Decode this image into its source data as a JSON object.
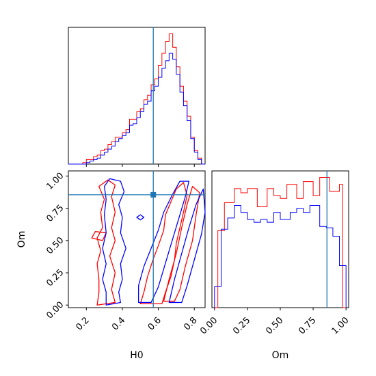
{
  "chart_data": [
    {
      "panel": "H0 marginal",
      "type": "histogram",
      "xlim": [
        0.1,
        0.86
      ],
      "tick_values": [
        0.2,
        0.4,
        0.6,
        0.8
      ],
      "truth_line_x": 0.572,
      "series": [
        {
          "color": "#ff0000",
          "bin_edges": [
            0.1,
            0.12,
            0.14,
            0.16,
            0.18,
            0.2,
            0.22,
            0.24,
            0.26,
            0.28,
            0.3,
            0.32,
            0.34,
            0.36,
            0.38,
            0.4,
            0.42,
            0.44,
            0.46,
            0.48,
            0.5,
            0.52,
            0.54,
            0.56,
            0.58,
            0.6,
            0.62,
            0.64,
            0.66,
            0.68,
            0.7,
            0.72,
            0.74,
            0.76,
            0.78,
            0.8,
            0.82,
            0.84,
            0.86
          ],
          "counts": [
            0,
            0,
            0,
            0,
            0.5,
            1.5,
            1.5,
            2.5,
            3,
            4.5,
            5,
            6.5,
            7.5,
            9,
            9,
            10.5,
            11.5,
            15,
            15,
            17.5,
            18.5,
            21.5,
            23,
            26.5,
            28.5,
            33,
            37,
            41,
            43.5,
            39,
            32.5,
            26,
            21,
            16,
            9,
            4.5,
            2,
            0
          ]
        },
        {
          "color": "#0000ff",
          "bin_edges": [
            0.1,
            0.12,
            0.14,
            0.16,
            0.18,
            0.2,
            0.22,
            0.24,
            0.26,
            0.28,
            0.3,
            0.32,
            0.34,
            0.36,
            0.38,
            0.4,
            0.42,
            0.44,
            0.46,
            0.48,
            0.5,
            0.52,
            0.54,
            0.56,
            0.58,
            0.6,
            0.62,
            0.64,
            0.66,
            0.68,
            0.7,
            0.72,
            0.74,
            0.76,
            0.78,
            0.8,
            0.82,
            0.84,
            0.86
          ],
          "counts": [
            0,
            0,
            0,
            0,
            0,
            0.5,
            1,
            1.5,
            2,
            3,
            4,
            5,
            6,
            7.5,
            8.5,
            9.5,
            10.5,
            13,
            13.5,
            15.5,
            17.5,
            20,
            21,
            24.5,
            26,
            29,
            32,
            34.5,
            37,
            35,
            30,
            24,
            19.5,
            14.5,
            8.5,
            4,
            1.5,
            0
          ]
        }
      ]
    },
    {
      "panel": "Om marginal",
      "type": "histogram",
      "xlim": [
        -0.02,
        1.02
      ],
      "tick_values": [
        0.0,
        0.25,
        0.5,
        0.75,
        1.0
      ],
      "tick_labels": [
        "0.00",
        "0.25",
        "0.50",
        "0.75",
        "1.00"
      ],
      "xlabel": "Om",
      "truth_line_x": 0.855,
      "series": [
        {
          "color": "#ff0000",
          "bin_edges": [
            0.0,
            0.025,
            0.05,
            0.075,
            0.1,
            0.125,
            0.15,
            0.175,
            0.2,
            0.225,
            0.25,
            0.275,
            0.3,
            0.325,
            0.35,
            0.375,
            0.4,
            0.425,
            0.45,
            0.475,
            0.5,
            0.525,
            0.55,
            0.575,
            0.6,
            0.625,
            0.65,
            0.675,
            0.7,
            0.725,
            0.75,
            0.775,
            0.8,
            0.825,
            0.85,
            0.875,
            0.9,
            0.925,
            0.95,
            0.975,
            1.0
          ],
          "counts": [
            0,
            5.5,
            5.5,
            7.5,
            7.5,
            7.5,
            8.5,
            8.5,
            8.2,
            8.2,
            8.5,
            8.5,
            8.5,
            7.2,
            7.2,
            7.2,
            8.5,
            8.5,
            8.0,
            8.0,
            7.8,
            7.8,
            8.8,
            8.8,
            8.8,
            7.8,
            7.8,
            9.0,
            9.0,
            9.0,
            8.0,
            8.0,
            9.3,
            9.3,
            9.3,
            8.3,
            8.3,
            8.3,
            8.8,
            0
          ]
        },
        {
          "color": "#0000ff",
          "bin_edges": [
            0.0,
            0.025,
            0.05,
            0.075,
            0.1,
            0.125,
            0.15,
            0.175,
            0.2,
            0.225,
            0.25,
            0.275,
            0.3,
            0.325,
            0.35,
            0.375,
            0.4,
            0.425,
            0.45,
            0.475,
            0.5,
            0.525,
            0.55,
            0.575,
            0.6,
            0.625,
            0.65,
            0.675,
            0.7,
            0.725,
            0.75,
            0.775,
            0.8,
            0.825,
            0.85,
            0.875,
            0.9,
            0.925,
            0.95,
            0.975,
            1.0
          ],
          "counts": [
            1.5,
            1.5,
            5.6,
            5.6,
            6.4,
            6.4,
            7.3,
            7.3,
            6.8,
            6.8,
            6.3,
            6.3,
            6.1,
            6.1,
            6.3,
            6.3,
            6.1,
            6.1,
            6.8,
            6.8,
            6.3,
            6.3,
            6.3,
            6.8,
            6.8,
            7.1,
            7.1,
            6.8,
            6.8,
            7.3,
            7.3,
            7.3,
            5.8,
            5.8,
            5.7,
            5.7,
            5.1,
            5.1,
            3.0,
            3.0
          ]
        }
      ]
    },
    {
      "panel": "H0 vs Om",
      "type": "contour",
      "xlim": [
        0.1,
        0.86
      ],
      "ylim": [
        -0.02,
        1.04
      ],
      "x_tick_values": [
        0.2,
        0.4,
        0.6,
        0.8
      ],
      "y_tick_values": [
        0.0,
        0.25,
        0.5,
        0.75,
        1.0
      ],
      "y_tick_labels": [
        "0.00",
        "0.25",
        "0.50",
        "0.75",
        "1.00"
      ],
      "xlabel": "H0",
      "ylabel": "Om",
      "truth_point": [
        0.572,
        0.855
      ],
      "contours": [
        {
          "color": "#ff0000",
          "points": [
            [
              0.26,
              0.0
            ],
            [
              0.27,
              0.1
            ],
            [
              0.27,
              0.2
            ],
            [
              0.26,
              0.32
            ],
            [
              0.28,
              0.42
            ],
            [
              0.26,
              0.52
            ],
            [
              0.29,
              0.6
            ],
            [
              0.28,
              0.72
            ],
            [
              0.3,
              0.82
            ],
            [
              0.27,
              0.92
            ],
            [
              0.32,
              0.97
            ],
            [
              0.36,
              0.93
            ],
            [
              0.34,
              0.84
            ],
            [
              0.36,
              0.72
            ],
            [
              0.34,
              0.6
            ],
            [
              0.36,
              0.5
            ],
            [
              0.33,
              0.38
            ],
            [
              0.36,
              0.25
            ],
            [
              0.34,
              0.12
            ],
            [
              0.36,
              0.02
            ]
          ]
        },
        {
          "color": "#ff0000",
          "points": [
            [
              0.23,
              0.52
            ],
            [
              0.29,
              0.5
            ],
            [
              0.31,
              0.56
            ],
            [
              0.25,
              0.57
            ]
          ]
        },
        {
          "color": "#ff0000",
          "points": [
            [
              0.5,
              0.01
            ],
            [
              0.52,
              0.1
            ],
            [
              0.54,
              0.22
            ],
            [
              0.57,
              0.35
            ],
            [
              0.6,
              0.46
            ],
            [
              0.63,
              0.58
            ],
            [
              0.64,
              0.7
            ],
            [
              0.67,
              0.8
            ],
            [
              0.7,
              0.9
            ],
            [
              0.74,
              0.95
            ],
            [
              0.76,
              0.85
            ],
            [
              0.74,
              0.72
            ],
            [
              0.72,
              0.6
            ],
            [
              0.7,
              0.48
            ],
            [
              0.69,
              0.35
            ],
            [
              0.67,
              0.22
            ],
            [
              0.64,
              0.1
            ],
            [
              0.62,
              0.01
            ]
          ]
        },
        {
          "color": "#ff0000",
          "points": [
            [
              0.63,
              0.03
            ],
            [
              0.66,
              0.2
            ],
            [
              0.7,
              0.4
            ],
            [
              0.73,
              0.6
            ],
            [
              0.76,
              0.78
            ],
            [
              0.79,
              0.92
            ],
            [
              0.83,
              0.87
            ],
            [
              0.81,
              0.7
            ],
            [
              0.79,
              0.5
            ],
            [
              0.75,
              0.3
            ],
            [
              0.72,
              0.12
            ],
            [
              0.69,
              0.03
            ]
          ]
        },
        {
          "color": "#0000ff",
          "points": [
            [
              0.31,
              0.0
            ],
            [
              0.31,
              0.1
            ],
            [
              0.29,
              0.2
            ],
            [
              0.31,
              0.32
            ],
            [
              0.29,
              0.44
            ],
            [
              0.31,
              0.56
            ],
            [
              0.3,
              0.7
            ],
            [
              0.31,
              0.82
            ],
            [
              0.3,
              0.92
            ],
            [
              0.33,
              0.98
            ],
            [
              0.39,
              0.96
            ],
            [
              0.41,
              0.88
            ],
            [
              0.38,
              0.78
            ],
            [
              0.4,
              0.68
            ],
            [
              0.39,
              0.56
            ],
            [
              0.42,
              0.44
            ],
            [
              0.39,
              0.32
            ],
            [
              0.4,
              0.2
            ],
            [
              0.38,
              0.1
            ],
            [
              0.39,
              0.02
            ]
          ]
        },
        {
          "color": "#0000ff",
          "points": [
            [
              0.49,
              0.02
            ],
            [
              0.49,
              0.15
            ],
            [
              0.52,
              0.3
            ],
            [
              0.56,
              0.44
            ],
            [
              0.6,
              0.58
            ],
            [
              0.63,
              0.72
            ],
            [
              0.68,
              0.86
            ],
            [
              0.72,
              0.96
            ],
            [
              0.77,
              0.96
            ],
            [
              0.75,
              0.84
            ],
            [
              0.72,
              0.7
            ],
            [
              0.69,
              0.56
            ],
            [
              0.66,
              0.42
            ],
            [
              0.63,
              0.28
            ],
            [
              0.6,
              0.14
            ],
            [
              0.56,
              0.02
            ]
          ]
        },
        {
          "color": "#0000ff",
          "points": [
            [
              0.66,
              0.02
            ],
            [
              0.69,
              0.2
            ],
            [
              0.73,
              0.4
            ],
            [
              0.77,
              0.6
            ],
            [
              0.81,
              0.78
            ],
            [
              0.85,
              0.9
            ],
            [
              0.86,
              0.72
            ],
            [
              0.84,
              0.55
            ],
            [
              0.8,
              0.35
            ],
            [
              0.76,
              0.15
            ],
            [
              0.73,
              0.02
            ]
          ]
        },
        {
          "color": "#0000ff",
          "points": [
            [
              0.5,
              0.66
            ],
            [
              0.52,
              0.68
            ],
            [
              0.5,
              0.7
            ],
            [
              0.48,
              0.68
            ]
          ]
        }
      ]
    }
  ]
}
